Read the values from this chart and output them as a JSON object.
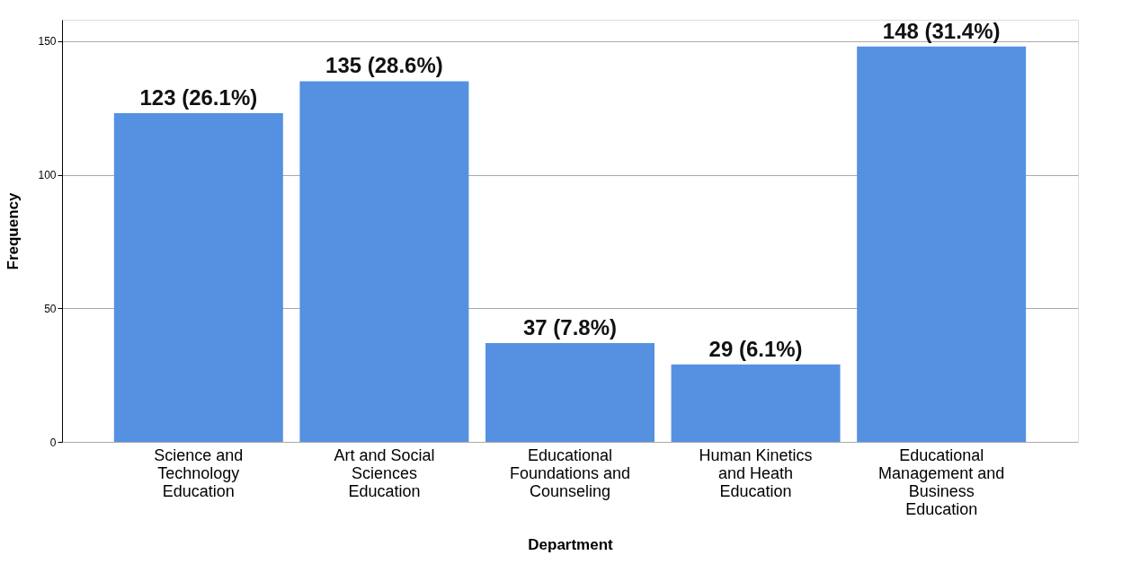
{
  "chart_data": {
    "type": "bar",
    "xlabel": "Department",
    "ylabel": "Frequency",
    "categories": [
      "Science and Technology Education",
      "Art and Social Sciences Education",
      "Educational Foundations and Counseling",
      "Human Kinetics and Heath Education",
      "Educational Management and Business Education"
    ],
    "values": [
      123,
      135,
      37,
      29,
      148
    ],
    "value_labels": [
      "123 (26.1%)",
      "135 (28.6%)",
      "37 (7.8%)",
      "29 (6.1%)",
      "148 (31.4%)"
    ],
    "color": "#5591e0",
    "ylim": [
      0,
      158
    ],
    "yticks": [
      0,
      50,
      100,
      150
    ],
    "grid": "y"
  }
}
